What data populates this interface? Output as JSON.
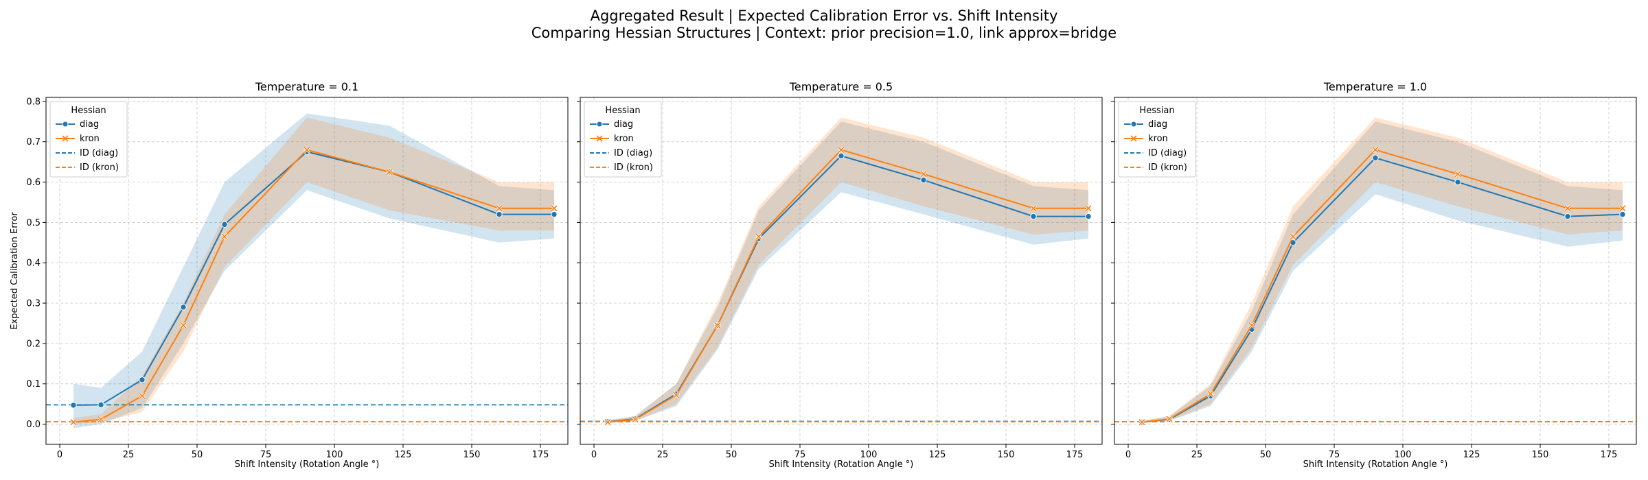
{
  "title_line1": "Aggregated Result | Expected Calibration Error vs. Shift Intensity",
  "title_line2": "Comparing Hessian Structures | Context: prior precision=1.0, link approx=bridge",
  "colors": {
    "diag": "#1f77b4",
    "kron": "#ff7f0e",
    "grid": "#cccccc",
    "band_diag": "#1f77b4",
    "band_kron": "#ff7f0e"
  },
  "chart_data": [
    {
      "type": "line",
      "title": "Temperature = 0.1",
      "xlabel": "Shift Intensity (Rotation Angle °)",
      "ylabel": "Expected Calibration Error",
      "xlim": [
        -5,
        185
      ],
      "ylim": [
        -0.05,
        0.81
      ],
      "xticks": [
        "0",
        "25",
        "50",
        "75",
        "100",
        "125",
        "150",
        "175"
      ],
      "yticks": [
        "0.0",
        "0.1",
        "0.2",
        "0.3",
        "0.4",
        "0.5",
        "0.6",
        "0.7",
        "0.8"
      ],
      "grid": true,
      "legend": {
        "title": "Hessian",
        "location": "upper-left",
        "entries": [
          "diag",
          "kron",
          "ID (diag)",
          "ID (kron)"
        ]
      },
      "x": [
        5,
        15,
        30,
        45,
        60,
        90,
        120,
        160,
        180
      ],
      "series": [
        {
          "name": "diag",
          "marker": "circle",
          "values": [
            0.047,
            0.048,
            0.11,
            0.29,
            0.495,
            0.675,
            0.625,
            0.52,
            0.52
          ],
          "lower": [
            -0.01,
            0.0,
            0.04,
            0.2,
            0.38,
            0.58,
            0.51,
            0.45,
            0.46
          ],
          "upper": [
            0.1,
            0.09,
            0.18,
            0.39,
            0.6,
            0.77,
            0.74,
            0.59,
            0.58
          ]
        },
        {
          "name": "kron",
          "marker": "x",
          "values": [
            0.005,
            0.012,
            0.07,
            0.245,
            0.465,
            0.68,
            0.625,
            0.535,
            0.535
          ],
          "lower": [
            0.0,
            0.005,
            0.03,
            0.18,
            0.39,
            0.6,
            0.53,
            0.48,
            0.48
          ],
          "upper": [
            0.015,
            0.025,
            0.12,
            0.3,
            0.52,
            0.76,
            0.71,
            0.6,
            0.6
          ]
        }
      ],
      "reference_lines": [
        {
          "name": "ID (diag)",
          "value": 0.048
        },
        {
          "name": "ID (kron)",
          "value": 0.006
        }
      ]
    },
    {
      "type": "line",
      "title": "Temperature = 0.5",
      "xlabel": "Shift Intensity (Rotation Angle °)",
      "ylabel": "",
      "xlim": [
        -5,
        185
      ],
      "ylim": [
        -0.05,
        0.81
      ],
      "xticks": [
        "0",
        "25",
        "50",
        "75",
        "100",
        "125",
        "150",
        "175"
      ],
      "yticks": [],
      "grid": true,
      "legend": {
        "title": "Hessian",
        "location": "upper-left",
        "entries": [
          "diag",
          "kron",
          "ID (diag)",
          "ID (kron)"
        ]
      },
      "x": [
        5,
        15,
        30,
        45,
        60,
        90,
        120,
        160,
        180
      ],
      "series": [
        {
          "name": "diag",
          "marker": "circle",
          "values": [
            0.006,
            0.013,
            0.075,
            0.245,
            0.46,
            0.665,
            0.605,
            0.515,
            0.515
          ],
          "lower": [
            0.004,
            0.008,
            0.045,
            0.185,
            0.385,
            0.575,
            0.52,
            0.445,
            0.46
          ],
          "upper": [
            0.01,
            0.02,
            0.1,
            0.29,
            0.53,
            0.75,
            0.7,
            0.59,
            0.58
          ]
        },
        {
          "name": "kron",
          "marker": "x",
          "values": [
            0.005,
            0.012,
            0.072,
            0.245,
            0.465,
            0.68,
            0.62,
            0.535,
            0.535
          ],
          "lower": [
            0.003,
            0.008,
            0.05,
            0.19,
            0.395,
            0.6,
            0.54,
            0.47,
            0.48
          ],
          "upper": [
            0.008,
            0.02,
            0.1,
            0.3,
            0.54,
            0.76,
            0.71,
            0.6,
            0.6
          ]
        }
      ],
      "reference_lines": [
        {
          "name": "ID (diag)",
          "value": 0.007
        },
        {
          "name": "ID (kron)",
          "value": 0.006
        }
      ]
    },
    {
      "type": "line",
      "title": "Temperature = 1.0",
      "xlabel": "Shift Intensity (Rotation Angle °)",
      "ylabel": "",
      "xlim": [
        -5,
        185
      ],
      "ylim": [
        -0.05,
        0.81
      ],
      "xticks": [
        "0",
        "25",
        "50",
        "75",
        "100",
        "125",
        "150",
        "175"
      ],
      "yticks": [],
      "grid": true,
      "legend": {
        "title": "Hessian",
        "location": "upper-left",
        "entries": [
          "diag",
          "kron",
          "ID (diag)",
          "ID (kron)"
        ]
      },
      "x": [
        5,
        15,
        30,
        45,
        60,
        90,
        120,
        160,
        180
      ],
      "series": [
        {
          "name": "diag",
          "marker": "circle",
          "values": [
            0.005,
            0.012,
            0.07,
            0.235,
            0.45,
            0.66,
            0.6,
            0.515,
            0.52
          ],
          "lower": [
            0.003,
            0.008,
            0.045,
            0.18,
            0.38,
            0.57,
            0.505,
            0.44,
            0.455
          ],
          "upper": [
            0.008,
            0.02,
            0.095,
            0.28,
            0.52,
            0.75,
            0.7,
            0.59,
            0.58
          ]
        },
        {
          "name": "kron",
          "marker": "x",
          "values": [
            0.005,
            0.013,
            0.075,
            0.245,
            0.465,
            0.68,
            0.62,
            0.535,
            0.535
          ],
          "lower": [
            0.003,
            0.008,
            0.05,
            0.19,
            0.395,
            0.6,
            0.54,
            0.47,
            0.48
          ],
          "upper": [
            0.008,
            0.02,
            0.1,
            0.3,
            0.54,
            0.76,
            0.71,
            0.6,
            0.6
          ]
        }
      ],
      "reference_lines": [
        {
          "name": "ID (diag)",
          "value": 0.006
        },
        {
          "name": "ID (kron)",
          "value": 0.006
        }
      ]
    }
  ]
}
